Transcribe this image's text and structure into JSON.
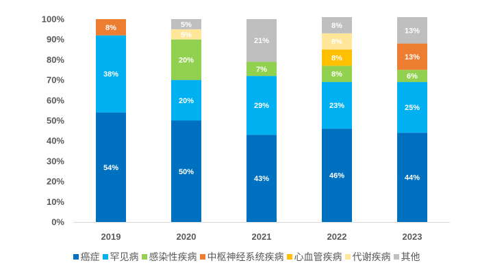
{
  "chart_data": {
    "type": "bar",
    "stacked": true,
    "percent_stacked": true,
    "title": "",
    "xlabel": "",
    "ylabel": "",
    "ylim": [
      0,
      100
    ],
    "y_ticks": [
      "0%",
      "10%",
      "20%",
      "30%",
      "40%",
      "50%",
      "60%",
      "70%",
      "80%",
      "90%",
      "100%"
    ],
    "grid": false,
    "legend_position": "bottom",
    "categories": [
      "2019",
      "2020",
      "2021",
      "2022",
      "2023"
    ],
    "series": [
      {
        "name": "癌症",
        "color": "#0070C0",
        "values": [
          54,
          50,
          43,
          46,
          44
        ],
        "labels": [
          "54%",
          "50%",
          "43%",
          "46%",
          "44%"
        ]
      },
      {
        "name": "罕见病",
        "color": "#00B0F0",
        "values": [
          38,
          20,
          29,
          23,
          25
        ],
        "labels": [
          "38%",
          "20%",
          "29%",
          "23%",
          "25%"
        ]
      },
      {
        "name": "感染性疾病",
        "color": "#92D050",
        "values": [
          0,
          20,
          7,
          8,
          6
        ],
        "labels": [
          "",
          "20%",
          "7%",
          "8%",
          "6%"
        ]
      },
      {
        "name": "中枢神经系统疾病",
        "color": "#ED7D31",
        "values": [
          8,
          0,
          0,
          0,
          13
        ],
        "labels": [
          "8%",
          "",
          "",
          "",
          "13%"
        ]
      },
      {
        "name": "心血管疾病",
        "color": "#FFC000",
        "values": [
          0,
          0,
          0,
          8,
          0
        ],
        "labels": [
          "",
          "",
          "",
          "8%",
          ""
        ]
      },
      {
        "name": "代谢疾病",
        "color": "#FFE699",
        "values": [
          0,
          5,
          0,
          8,
          0
        ],
        "labels": [
          "",
          "5%",
          "",
          "8%",
          ""
        ]
      },
      {
        "name": "其他",
        "color": "#BFBFBF",
        "values": [
          0,
          5,
          21,
          8,
          13
        ],
        "labels": [
          "",
          "5%",
          "21%",
          "8%",
          "13%"
        ]
      }
    ]
  }
}
